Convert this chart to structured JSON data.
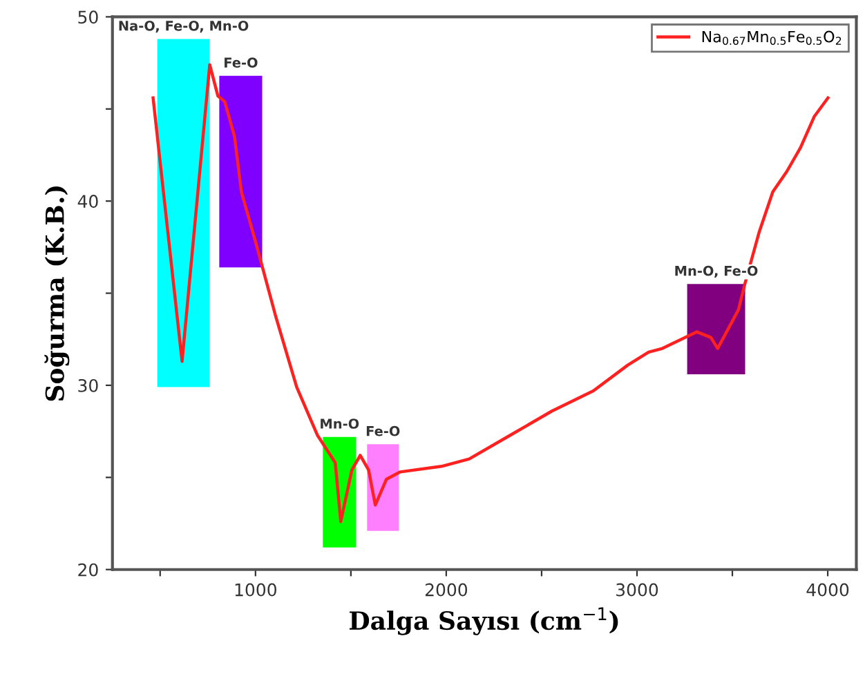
{
  "chart_data": {
    "type": "line",
    "xlabel": "Dalga Sayısı (cm$^{−1}$)",
    "ylabel": "Soğurma (K.B.)",
    "xlim": [
      250,
      4150
    ],
    "ylim": [
      20,
      50
    ],
    "xticks": [
      {
        "value": 500,
        "label": null
      },
      1000,
      {
        "value": 1500,
        "label": null
      },
      2000,
      {
        "value": 2500,
        "label": null
      },
      3000,
      {
        "value": 3500,
        "label": null
      },
      4000
    ],
    "yticks": [
      20,
      {
        "value": 25,
        "label": null
      },
      30,
      {
        "value": 35,
        "label": null
      },
      40,
      {
        "value": 45,
        "label": null
      },
      50
    ],
    "grid": false,
    "legend": "top right",
    "marker": "none",
    "line_style": "solid",
    "series": [
      {
        "name": "Na$_{0.67}$Mn$_{0.5}$Fe$_{0.5}$O$_{2}$",
        "color": "#ff2020",
        "x": [
          463,
          615,
          760,
          803,
          839,
          890,
          926,
          1000,
          1107,
          1216,
          1324,
          1418,
          1447,
          1505,
          1549,
          1593,
          1628,
          1686,
          1759,
          1975,
          2120,
          2337,
          2554,
          2771,
          2952,
          3061,
          3133,
          3314,
          3387,
          3423,
          3532,
          3568,
          3640,
          3712,
          3785,
          3857,
          3930,
          4001
        ],
        "values": [
          45.6,
          31.3,
          47.4,
          45.7,
          45.4,
          43.5,
          40.5,
          37.8,
          33.7,
          29.9,
          27.3,
          25.8,
          22.6,
          25.4,
          26.2,
          25.4,
          23.5,
          24.9,
          25.3,
          25.6,
          26.0,
          27.3,
          28.6,
          29.7,
          31.1,
          31.8,
          32.0,
          32.9,
          32.6,
          32.0,
          34.1,
          35.6,
          38.3,
          40.5,
          41.6,
          42.9,
          44.6,
          45.6
        ]
      }
    ],
    "bands": [
      {
        "axis": "x",
        "from": 485,
        "to": 760,
        "label": "Na-O, Fe-O, Mn-O",
        "color": "#00ffff"
      },
      {
        "axis": "x",
        "from": 810,
        "to": 1035,
        "label": "Fe-O",
        "color": "#8000ff"
      },
      {
        "axis": "x",
        "from": 1353,
        "to": 1527,
        "label": "Mn-O",
        "color": "#00ff00"
      },
      {
        "axis": "x",
        "from": 1585,
        "to": 1751,
        "label": "Fe-O",
        "color": "#ff80ff"
      },
      {
        "axis": "x",
        "from": 3263,
        "to": 3567,
        "label": "Mn-O, Fe-O",
        "color": "#800080"
      }
    ]
  }
}
